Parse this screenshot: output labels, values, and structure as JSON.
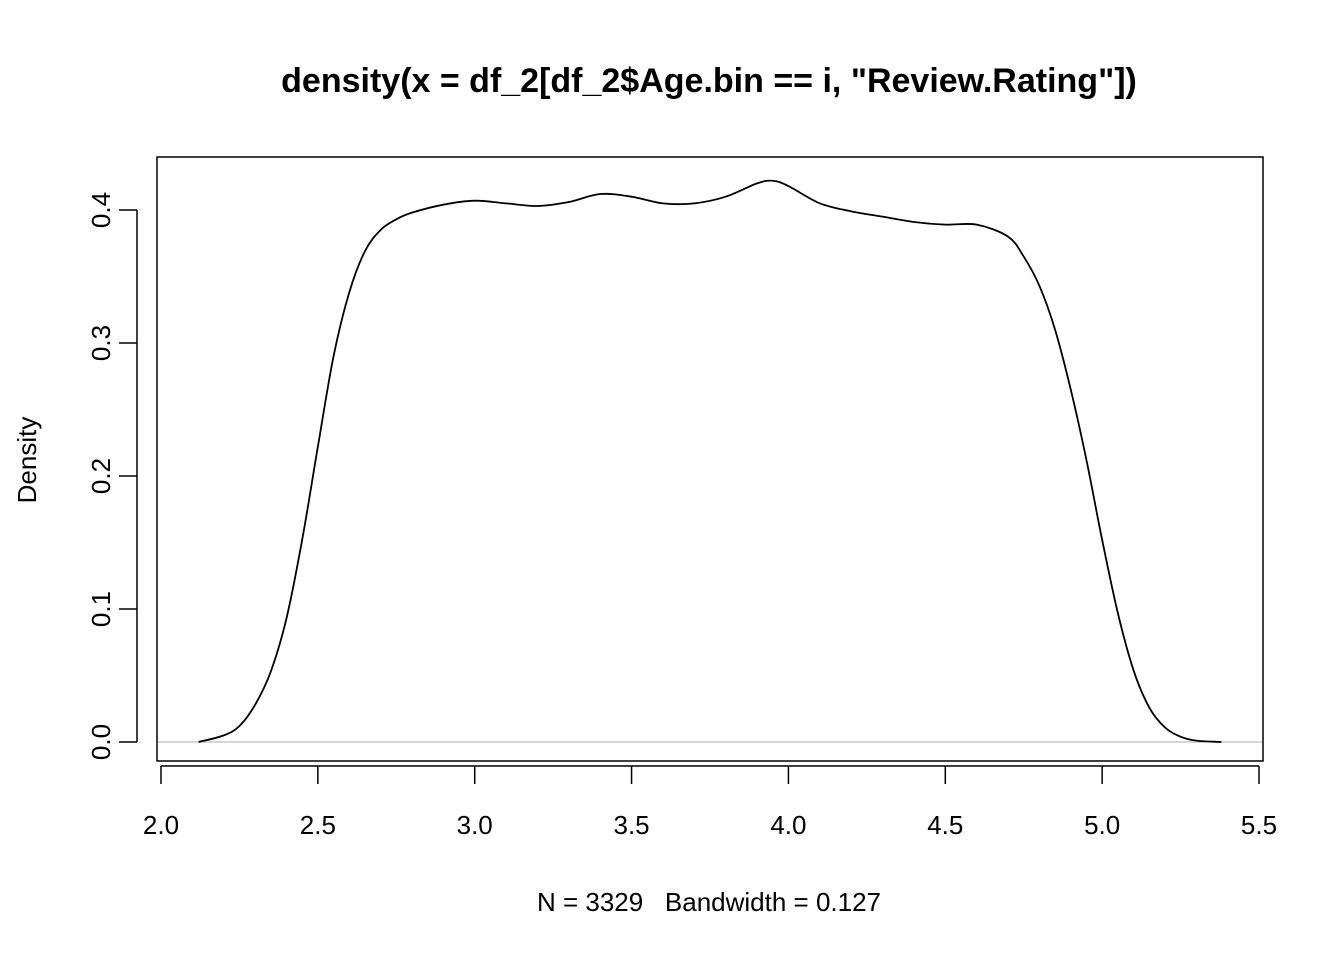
{
  "chart_data": {
    "type": "line",
    "title": "density(x = df_2[df_2$Age.bin == i, \"Review.Rating\"])",
    "xlabel": "N = 3329   Bandwidth = 0.127",
    "ylabel": "Density",
    "xlim": [
      2.0,
      5.5
    ],
    "ylim": [
      0.0,
      0.42
    ],
    "x_ticks": [
      "2.0",
      "2.5",
      "3.0",
      "3.5",
      "4.0",
      "4.5",
      "5.0",
      "5.5"
    ],
    "y_ticks": [
      "0.0",
      "0.1",
      "0.2",
      "0.3",
      "0.4"
    ],
    "grid": false,
    "baseline": 0.0,
    "series": [
      {
        "x": [
          2.12,
          2.2,
          2.25,
          2.3,
          2.35,
          2.4,
          2.45,
          2.5,
          2.55,
          2.6,
          2.65,
          2.7,
          2.75,
          2.8,
          2.9,
          3.0,
          3.1,
          3.2,
          3.3,
          3.4,
          3.5,
          3.6,
          3.7,
          3.8,
          3.9,
          3.95,
          4.0,
          4.1,
          4.2,
          4.3,
          4.4,
          4.5,
          4.6,
          4.7,
          4.75,
          4.8,
          4.85,
          4.9,
          4.95,
          5.0,
          5.05,
          5.1,
          5.15,
          5.2,
          5.25,
          5.3,
          5.38
        ],
        "values": [
          0.0,
          0.005,
          0.012,
          0.028,
          0.053,
          0.093,
          0.152,
          0.222,
          0.29,
          0.338,
          0.369,
          0.385,
          0.393,
          0.398,
          0.404,
          0.407,
          0.405,
          0.403,
          0.406,
          0.412,
          0.41,
          0.405,
          0.405,
          0.41,
          0.42,
          0.422,
          0.418,
          0.405,
          0.399,
          0.395,
          0.391,
          0.389,
          0.389,
          0.38,
          0.365,
          0.343,
          0.31,
          0.265,
          0.212,
          0.152,
          0.097,
          0.054,
          0.026,
          0.011,
          0.004,
          0.001,
          0.0
        ]
      }
    ],
    "colors": {
      "line": "#000000",
      "frame": "#000000",
      "baseline": "#c8c8c8",
      "background": "#ffffff"
    }
  }
}
